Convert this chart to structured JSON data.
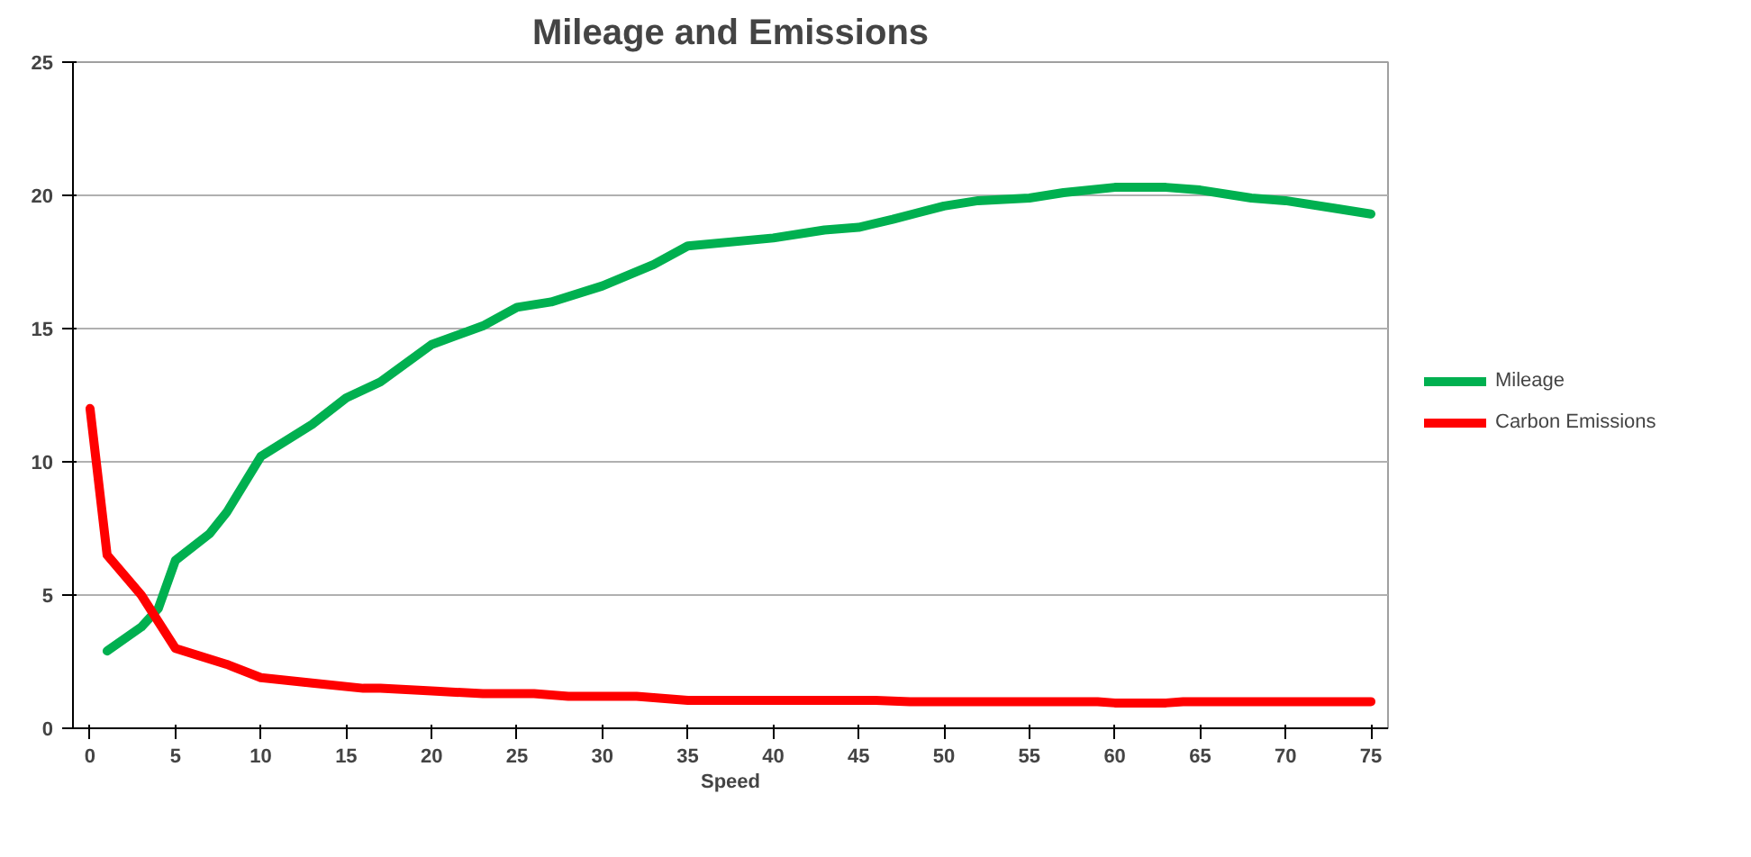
{
  "chart_data": {
    "type": "line",
    "title": "Mileage and Emissions",
    "xlabel": "Speed",
    "xlim": [
      -1,
      76
    ],
    "xticks": [
      0,
      5,
      10,
      15,
      20,
      25,
      30,
      35,
      40,
      45,
      50,
      55,
      60,
      65,
      70,
      75
    ],
    "ylim": [
      0,
      25
    ],
    "yticks": [
      0,
      5,
      10,
      15,
      20,
      25
    ],
    "grid": "y",
    "legend": "right",
    "marker": "none",
    "line_style": "solid",
    "series": [
      {
        "name": "Mileage",
        "color": "#00b050",
        "x": [
          1,
          3,
          4,
          5,
          7,
          8,
          10,
          13,
          15,
          17,
          20,
          23,
          25,
          27,
          30,
          33,
          35,
          40,
          43,
          45,
          47,
          50,
          52,
          55,
          57,
          60,
          63,
          65,
          68,
          70,
          73,
          75
        ],
        "values": [
          2.9,
          3.8,
          4.5,
          6.3,
          7.3,
          8.1,
          10.2,
          11.4,
          12.4,
          13.0,
          14.4,
          15.1,
          15.8,
          16.0,
          16.6,
          17.4,
          18.1,
          18.4,
          18.7,
          18.8,
          19.1,
          19.6,
          19.8,
          19.9,
          20.1,
          20.3,
          20.3,
          20.2,
          19.9,
          19.8,
          19.5,
          19.3
        ]
      },
      {
        "name": "Carbon Emissions",
        "color": "#ff0000",
        "x": [
          0,
          1,
          3,
          5,
          8,
          10,
          13,
          16,
          17,
          20,
          23,
          26,
          28,
          32,
          34,
          35,
          46,
          48,
          59,
          60,
          63,
          64,
          75
        ],
        "values": [
          12,
          6.5,
          5.0,
          3.0,
          2.4,
          1.9,
          1.7,
          1.5,
          1.5,
          1.4,
          1.3,
          1.3,
          1.2,
          1.2,
          1.1,
          1.05,
          1.05,
          1.0,
          1.0,
          0.95,
          0.95,
          1.0,
          1.0
        ]
      }
    ]
  }
}
